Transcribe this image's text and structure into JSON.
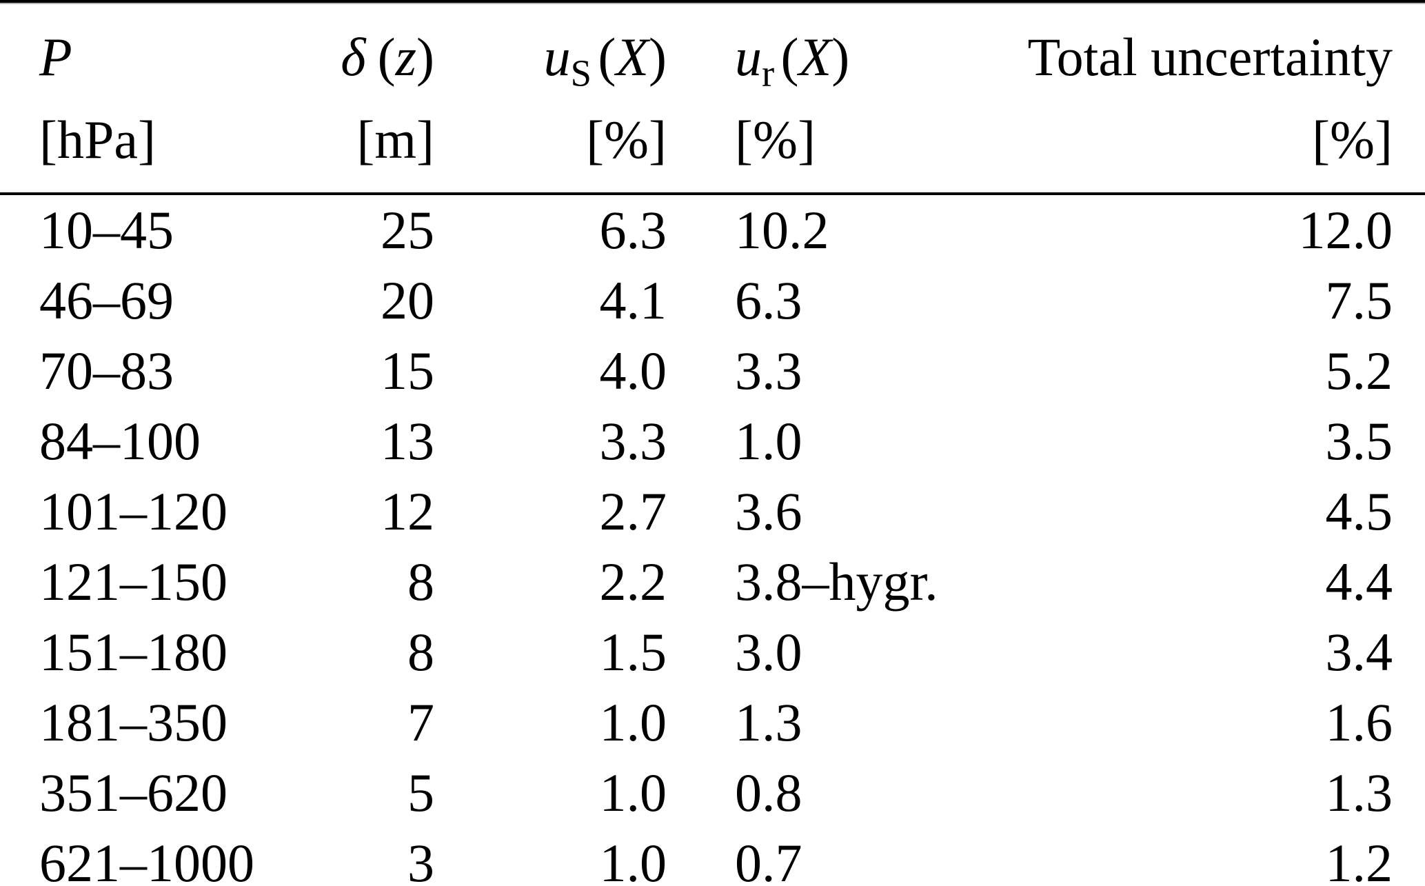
{
  "page": {
    "background": "#ffffff",
    "text_color": "#000000",
    "rule_color": "#000000",
    "rule_shadow_color": "#b4b4b4"
  },
  "table": {
    "columns": [
      {
        "symbol": "P",
        "unit": "[hPa]"
      },
      {
        "symbol": "δ",
        "arg_open": "(",
        "arg_letter": "z",
        "arg_close": ")",
        "unit": "[m]"
      },
      {
        "symbol": "u",
        "subscript": "S",
        "arg_open": "(",
        "arg_letter": "X",
        "arg_close": ")",
        "unit": "[%]"
      },
      {
        "symbol": "u",
        "subscript": "r",
        "arg_open": "(",
        "arg_letter": "X",
        "arg_close": ")",
        "unit": "[%]"
      },
      {
        "symbol": "Total uncertainty",
        "unit": "[%]"
      }
    ],
    "rows": [
      [
        "10–45",
        "25",
        "6.3",
        "10.2",
        "12.0"
      ],
      [
        "46–69",
        "20",
        "4.1",
        "6.3",
        "7.5"
      ],
      [
        "70–83",
        "15",
        "4.0",
        "3.3",
        "5.2"
      ],
      [
        "84–100",
        "13",
        "3.3",
        "1.0",
        "3.5"
      ],
      [
        "101–120",
        "12",
        "2.7",
        "3.6",
        "4.5"
      ],
      [
        "121–150",
        "8",
        "2.2",
        "3.8–hygr.",
        "4.4"
      ],
      [
        "151–180",
        "8",
        "1.5",
        "3.0",
        "3.4"
      ],
      [
        "181–350",
        "7",
        "1.0",
        "1.3",
        "1.6"
      ],
      [
        "351–620",
        "5",
        "1.0",
        "0.8",
        "1.3"
      ],
      [
        "621–1000",
        "3",
        "1.0",
        "0.7",
        "1.2"
      ]
    ]
  }
}
